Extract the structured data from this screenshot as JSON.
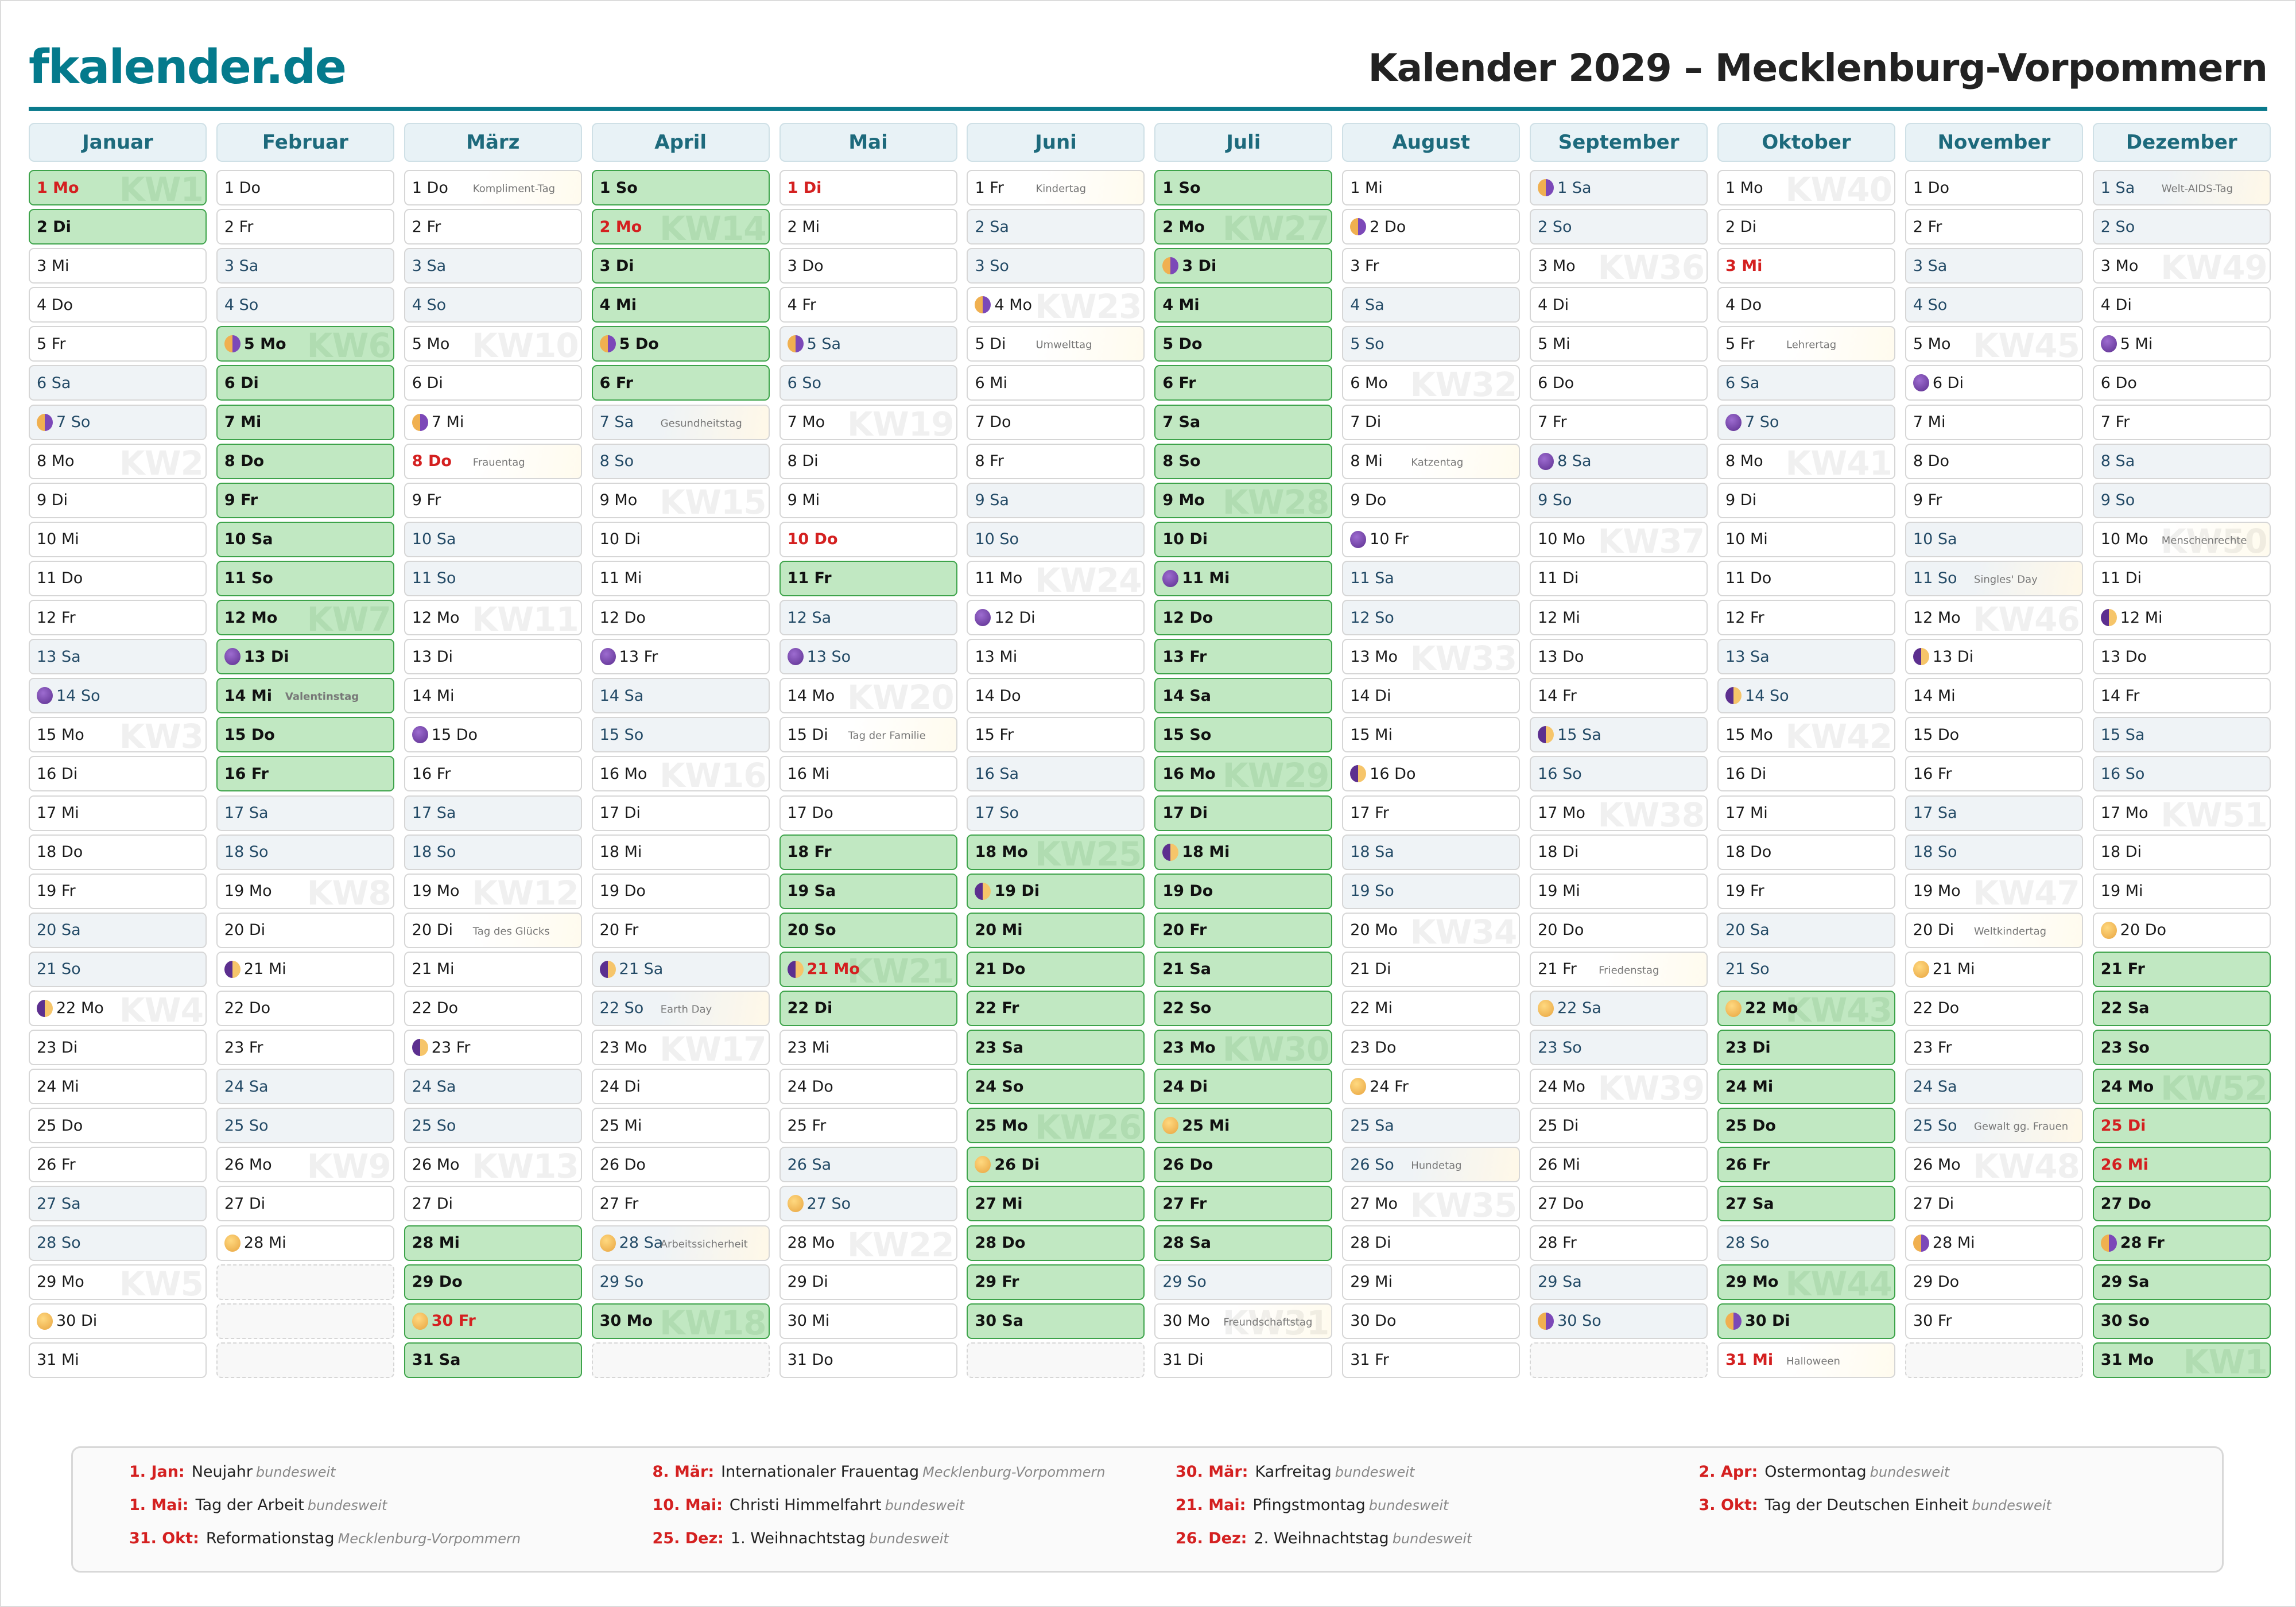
{
  "header": {
    "logo": "fkalender.de",
    "title": "Kalender 2029 – Mecklenburg-Vorpommern"
  },
  "colors": {
    "brand": "#047a8c",
    "holiday_text": "#d42020",
    "vacation_bg": "#c1e8c2",
    "vacation_border": "#3da34a",
    "weekend_bg": "#eff3f6",
    "month_header_bg": "#e8f2f6"
  },
  "moon_icons": {
    "full": "full-moon-icon",
    "new": "new-moon-icon",
    "first": "first-quarter-moon-icon",
    "last": "last-quarter-moon-icon"
  },
  "calendar": {
    "year": 2029,
    "weekday_names": [
      "Mo",
      "Di",
      "Mi",
      "Do",
      "Fr",
      "Sa",
      "So"
    ],
    "months": [
      {
        "name": "Januar",
        "days": 31,
        "first_weekday": 0,
        "vacation": [
          1,
          2
        ],
        "holidays": [
          1
        ],
        "moons": {
          "7": "last",
          "14": "new",
          "22": "first",
          "30": "full"
        },
        "events": {}
      },
      {
        "name": "Februar",
        "days": 28,
        "first_weekday": 3,
        "vacation": [
          5,
          6,
          7,
          8,
          9,
          10,
          11,
          12,
          13,
          14,
          15,
          16
        ],
        "holidays": [],
        "moons": {
          "5": "last",
          "13": "new",
          "21": "first",
          "28": "full"
        },
        "events": {
          "14": "Valentinstag"
        }
      },
      {
        "name": "März",
        "days": 31,
        "first_weekday": 3,
        "vacation": [
          28,
          29,
          30,
          31
        ],
        "holidays": [
          8,
          30
        ],
        "moons": {
          "7": "last",
          "15": "new",
          "23": "first",
          "30": "full"
        },
        "events": {
          "1": "Kompliment-Tag",
          "8": "Frauentag",
          "20": "Tag des Glücks"
        }
      },
      {
        "name": "April",
        "days": 30,
        "first_weekday": 6,
        "vacation": [
          1,
          2,
          3,
          4,
          5,
          6,
          30
        ],
        "holidays": [
          2
        ],
        "moons": {
          "5": "last",
          "13": "new",
          "21": "first",
          "28": "full"
        },
        "events": {
          "7": "Gesundheitstag",
          "22": "Earth Day",
          "28": "Arbeitssicherheit"
        }
      },
      {
        "name": "Mai",
        "days": 31,
        "first_weekday": 1,
        "vacation": [
          11,
          18,
          19,
          20,
          21,
          22
        ],
        "holidays": [
          1,
          10,
          21
        ],
        "moons": {
          "5": "last",
          "13": "new",
          "21": "first",
          "27": "full"
        },
        "events": {
          "15": "Tag der Familie"
        }
      },
      {
        "name": "Juni",
        "days": 30,
        "first_weekday": 4,
        "vacation": [
          18,
          19,
          20,
          21,
          22,
          23,
          24,
          25,
          26,
          27,
          28,
          29,
          30
        ],
        "holidays": [],
        "moons": {
          "4": "last",
          "12": "new",
          "19": "first",
          "26": "full"
        },
        "events": {
          "1": "Kindertag",
          "5": "Umwelttag"
        }
      },
      {
        "name": "Juli",
        "days": 31,
        "first_weekday": 6,
        "vacation": [
          1,
          2,
          3,
          4,
          5,
          6,
          7,
          8,
          9,
          10,
          11,
          12,
          13,
          14,
          15,
          16,
          17,
          18,
          19,
          20,
          21,
          22,
          23,
          24,
          25,
          26,
          27,
          28
        ],
        "holidays": [],
        "moons": {
          "3": "last",
          "11": "new",
          "18": "first",
          "25": "full"
        },
        "events": {
          "30": "Freundschaftstag"
        }
      },
      {
        "name": "August",
        "days": 31,
        "first_weekday": 2,
        "vacation": [],
        "holidays": [],
        "moons": {
          "2": "last",
          "10": "new",
          "16": "first",
          "24": "full"
        },
        "events": {
          "8": "Katzentag",
          "26": "Hundetag"
        }
      },
      {
        "name": "September",
        "days": 30,
        "first_weekday": 5,
        "vacation": [],
        "holidays": [],
        "moons": {
          "1": "last",
          "8": "new",
          "15": "first",
          "22": "full",
          "30": "last"
        },
        "events": {
          "21": "Friedenstag"
        }
      },
      {
        "name": "Oktober",
        "days": 31,
        "first_weekday": 0,
        "vacation": [
          22,
          23,
          24,
          25,
          26,
          27,
          29,
          30
        ],
        "holidays": [
          3,
          31
        ],
        "moons": {
          "7": "new",
          "14": "first",
          "22": "full",
          "30": "last"
        },
        "events": {
          "5": "Lehrertag",
          "31": "Halloween"
        }
      },
      {
        "name": "November",
        "days": 30,
        "first_weekday": 3,
        "vacation": [],
        "holidays": [],
        "moons": {
          "6": "new",
          "13": "first",
          "21": "full",
          "28": "last"
        },
        "events": {
          "11": "Singles' Day",
          "20": "Weltkindertag",
          "25": "Gewalt gg. Frauen"
        }
      },
      {
        "name": "Dezember",
        "days": 31,
        "first_weekday": 5,
        "vacation": [
          21,
          22,
          23,
          24,
          25,
          26,
          27,
          28,
          29,
          30,
          31
        ],
        "holidays": [
          25,
          26
        ],
        "moons": {
          "5": "new",
          "12": "first",
          "20": "full",
          "28": "last"
        },
        "events": {
          "1": "Welt-AIDS-Tag",
          "10": "Menschenrechte"
        }
      }
    ]
  },
  "legend": [
    {
      "date": "1. Jan:",
      "name": "Neujahr",
      "region": "bundesweit"
    },
    {
      "date": "8. Mär:",
      "name": "Internationaler Frauentag",
      "region": "Mecklenburg-Vorpommern"
    },
    {
      "date": "30. Mär:",
      "name": "Karfreitag",
      "region": "bundesweit"
    },
    {
      "date": "2. Apr:",
      "name": "Ostermontag",
      "region": "bundesweit"
    },
    {
      "date": "1. Mai:",
      "name": "Tag der Arbeit",
      "region": "bundesweit"
    },
    {
      "date": "10. Mai:",
      "name": "Christi Himmelfahrt",
      "region": "bundesweit"
    },
    {
      "date": "21. Mai:",
      "name": "Pfingstmontag",
      "region": "bundesweit"
    },
    {
      "date": "3. Okt:",
      "name": "Tag der Deutschen Einheit",
      "region": "bundesweit"
    },
    {
      "date": "31. Okt:",
      "name": "Reformationstag",
      "region": "Mecklenburg-Vorpommern"
    },
    {
      "date": "25. Dez:",
      "name": "1. Weihnachtstag",
      "region": "bundesweit"
    },
    {
      "date": "26. Dez:",
      "name": "2. Weihnachtstag",
      "region": "bundesweit"
    }
  ]
}
